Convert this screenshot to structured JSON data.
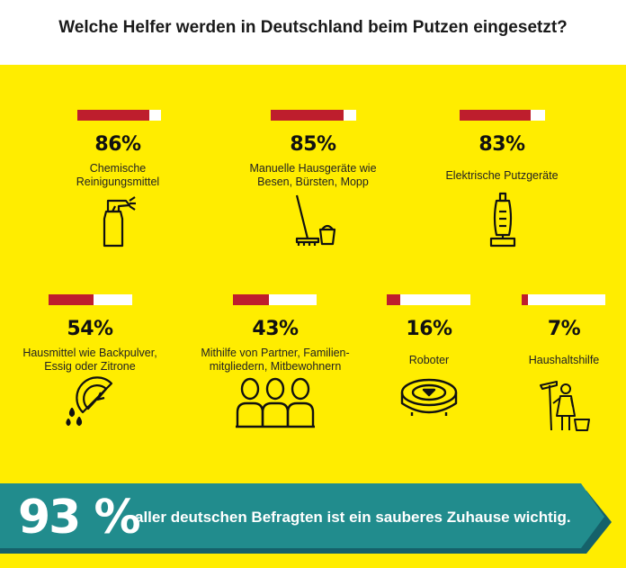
{
  "title": "Welche Helfer werden in Deutschland beim Putzen eingesetzt?",
  "colors": {
    "panel": "#ffed00",
    "bar_fill": "#be1e2d",
    "bar_empty": "#ffffff",
    "band": "#218c8d",
    "band_dark": "#15616a"
  },
  "chart_data": {
    "type": "bar",
    "title": "Welche Helfer werden in Deutschland beim Putzen eingesetzt?",
    "categories": [
      "Chemische Reinigungsmittel",
      "Manuelle Hausgeräte wie Besen, Bürsten, Mopp",
      "Elektrische Putzgeräte",
      "Hausmittel wie Backpulver, Essig oder Zitrone",
      "Mithilfe von Partner, Familienmitgliedern, Mitbewohnern",
      "Roboter",
      "Haushaltshilfe"
    ],
    "values": [
      86,
      85,
      83,
      54,
      43,
      16,
      7
    ],
    "ylim": [
      0,
      100
    ]
  },
  "items": [
    {
      "pct": "86%",
      "label_lines": [
        "Chemische",
        "Reinigungsmittel"
      ],
      "icon": "spray-bottle-icon"
    },
    {
      "pct": "85%",
      "label_lines": [
        "Manuelle Hausgeräte wie",
        "Besen, Bürsten, Mopp"
      ],
      "icon": "mop-bucket-icon"
    },
    {
      "pct": "83%",
      "label_lines": [
        "Elektrische Putzgeräte"
      ],
      "icon": "vacuum-cleaner-icon"
    },
    {
      "pct": "54%",
      "label_lines": [
        "Hausmittel wie Backpulver,",
        "Essig oder Zitrone"
      ],
      "icon": "lemon-drops-icon"
    },
    {
      "pct": "43%",
      "label_lines": [
        "Mithilfe von Partner, Familien-",
        "mitgliedern, Mitbewohnern"
      ],
      "icon": "people-group-icon"
    },
    {
      "pct": "16%",
      "label_lines": [
        "Roboter"
      ],
      "icon": "robot-vacuum-icon"
    },
    {
      "pct": "7%",
      "label_lines": [
        "Haushaltshilfe"
      ],
      "icon": "housekeeper-icon"
    }
  ],
  "band": {
    "pct": "93 %",
    "text": "aller deutschen Befragten ist ein sauberes Zuhause wichtig."
  }
}
